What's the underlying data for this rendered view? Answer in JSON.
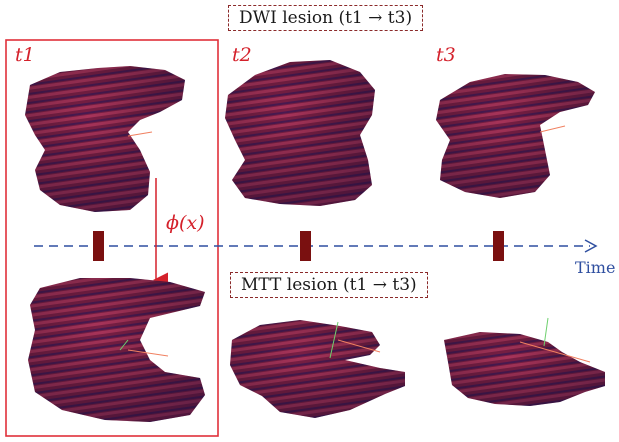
{
  "labels": {
    "dwi_title": "DWI lesion (t1 → t3)",
    "mtt_title": "MTT lesion (t1 → t3)",
    "t1_top": "t1",
    "t2": "t2",
    "t3": "t3",
    "phi": "ϕ(x)",
    "time": "Time"
  },
  "colors": {
    "lesion": "#7a1f45",
    "lesion_highlight": "#a8345a",
    "lesion_shadow": "#3b1a55",
    "highlight_box": "#e0303a",
    "title_box": "#8b2a2a",
    "timeline": "#2f4fa0",
    "timepoint_marker": "#7a1010"
  }
}
